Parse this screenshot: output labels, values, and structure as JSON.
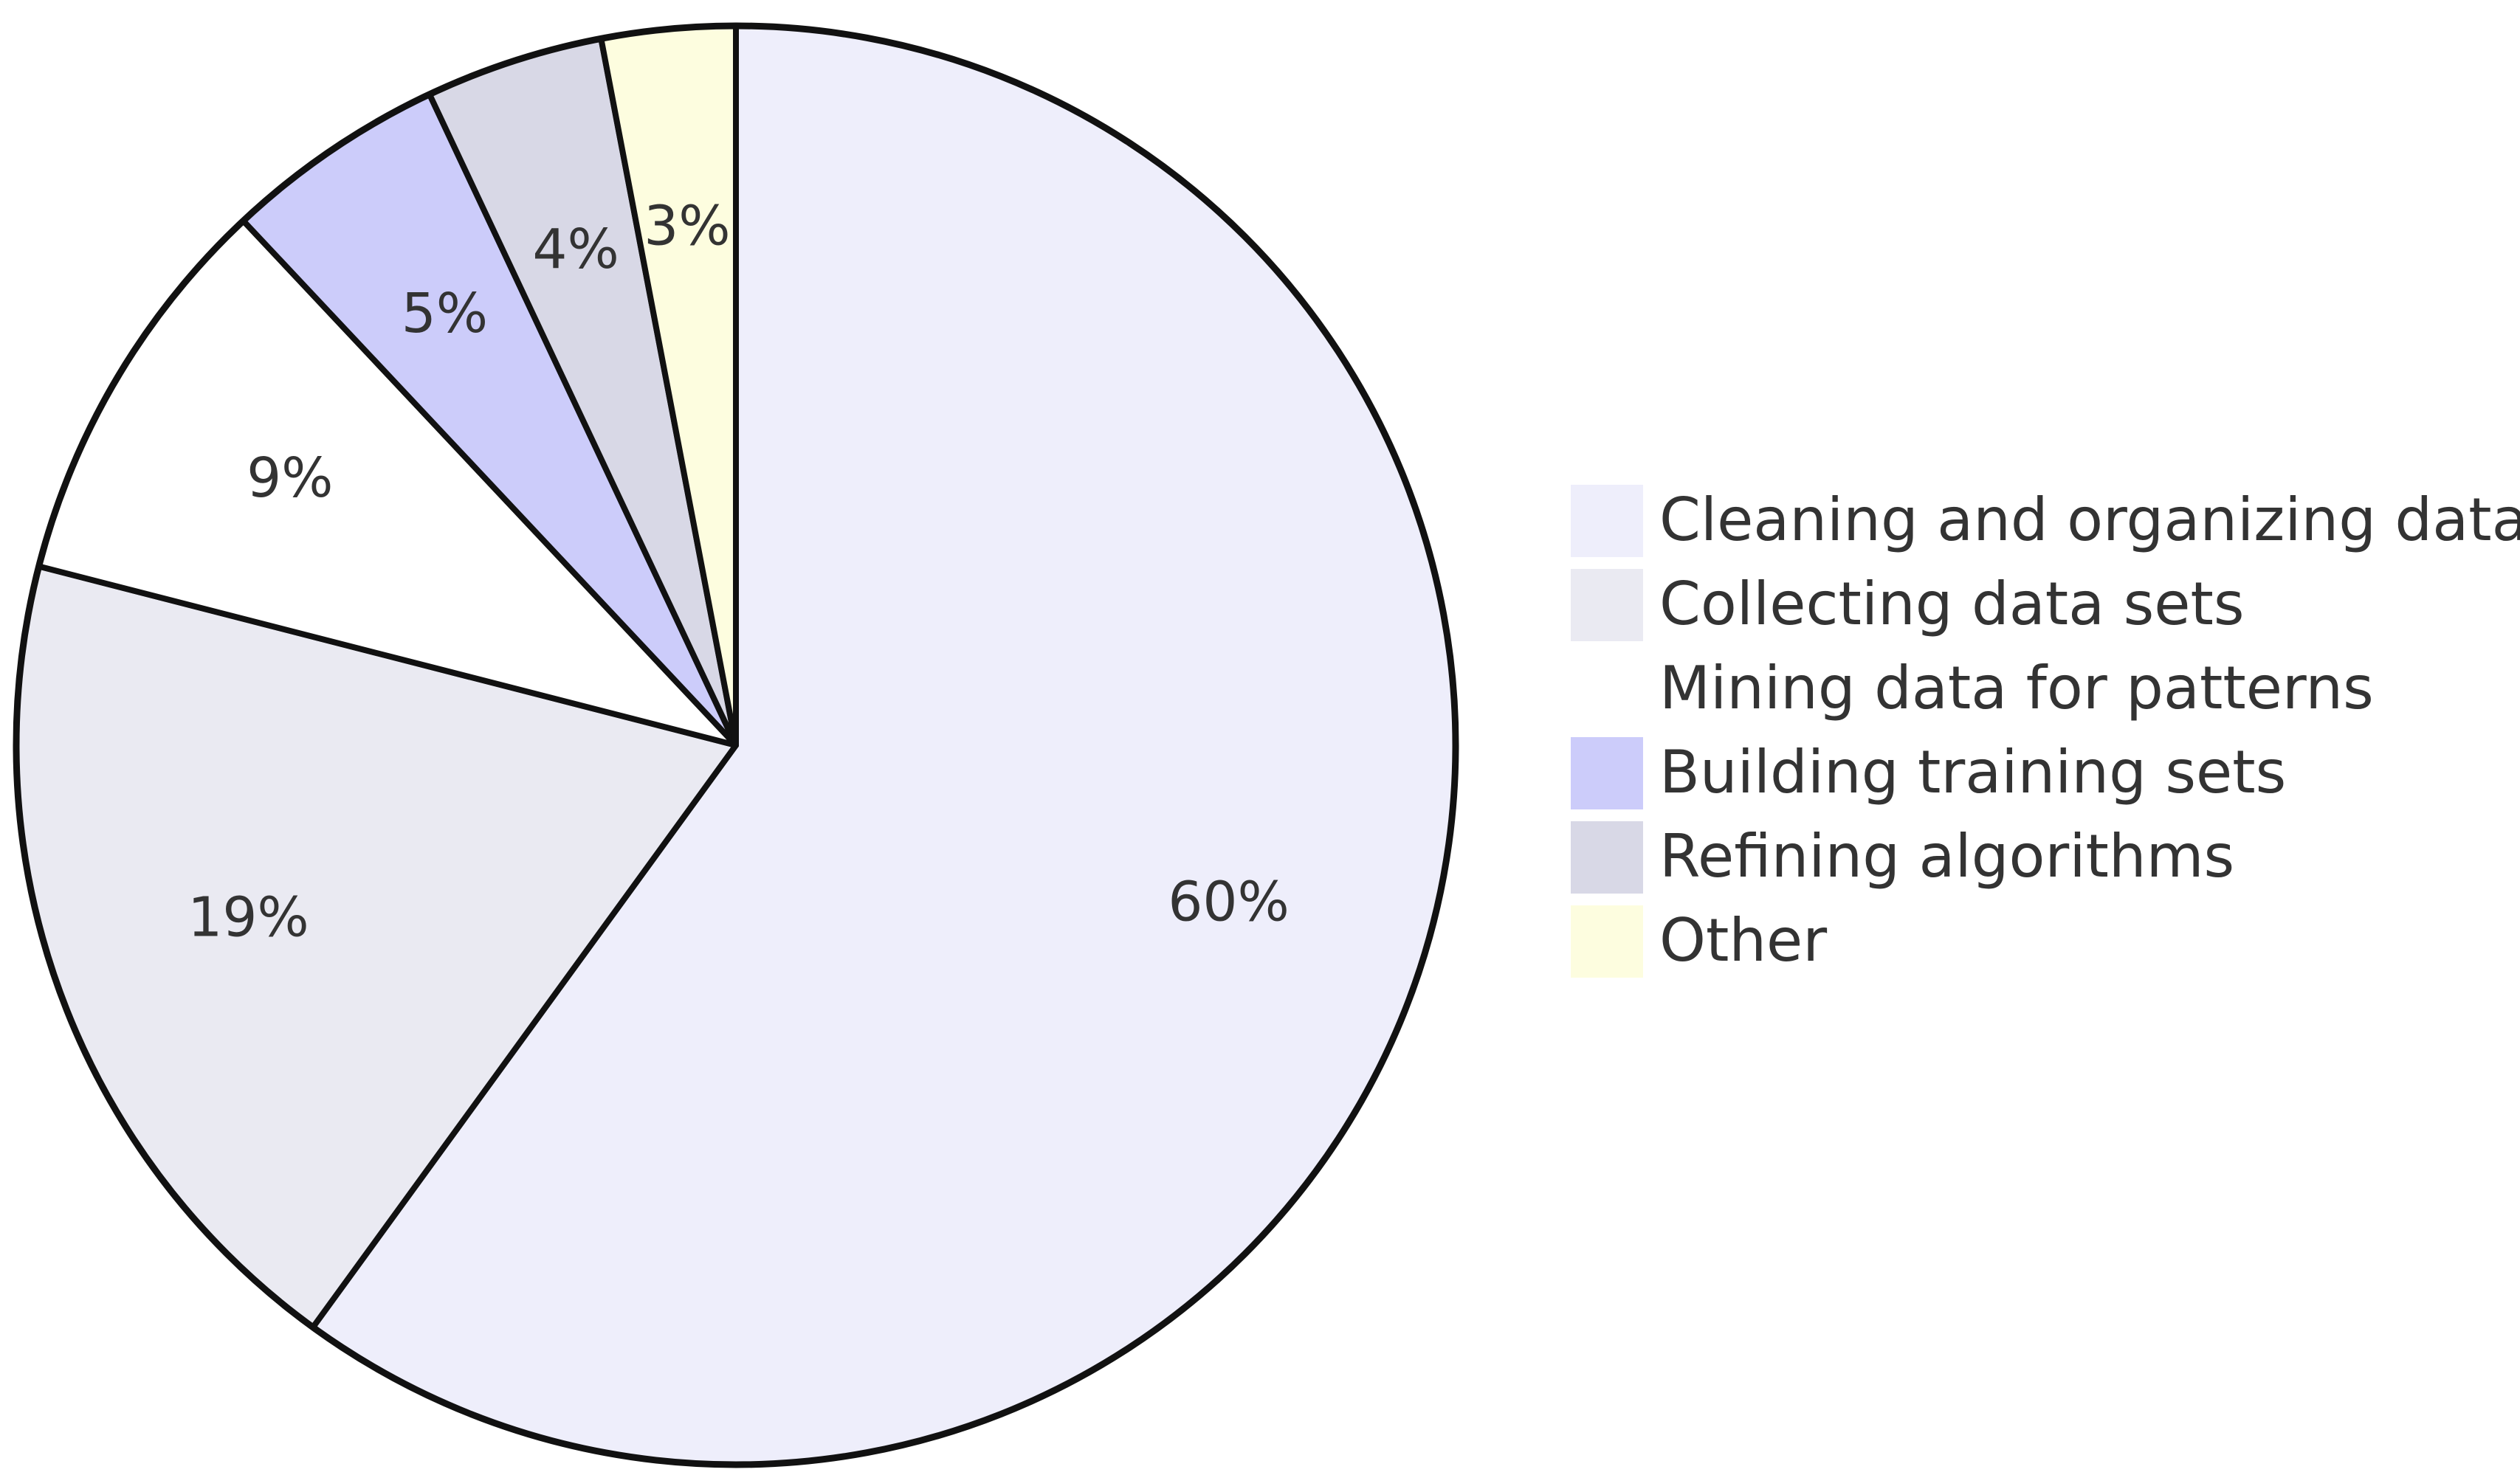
{
  "chart_data": {
    "type": "pie",
    "title": "",
    "start_angle_deg": 0,
    "direction": "clockwise",
    "legend_position": "right",
    "slices": [
      {
        "label": "Cleaning and organizing data",
        "value": 60,
        "display": "60%",
        "color": "#EEEEFB"
      },
      {
        "label": "Collecting data sets",
        "value": 19,
        "display": "19%",
        "color": "#EAEAF2"
      },
      {
        "label": "Mining data for patterns",
        "value": 9,
        "display": "9%",
        "color": "#FFFFFF"
      },
      {
        "label": "Building training sets",
        "value": 5,
        "display": "5%",
        "color": "#CCCCFA"
      },
      {
        "label": "Refining algorithms",
        "value": 4,
        "display": "4%",
        "color": "#D8D8E6"
      },
      {
        "label": "Other",
        "value": 3,
        "display": "3%",
        "color": "#FDFDDF"
      }
    ]
  }
}
